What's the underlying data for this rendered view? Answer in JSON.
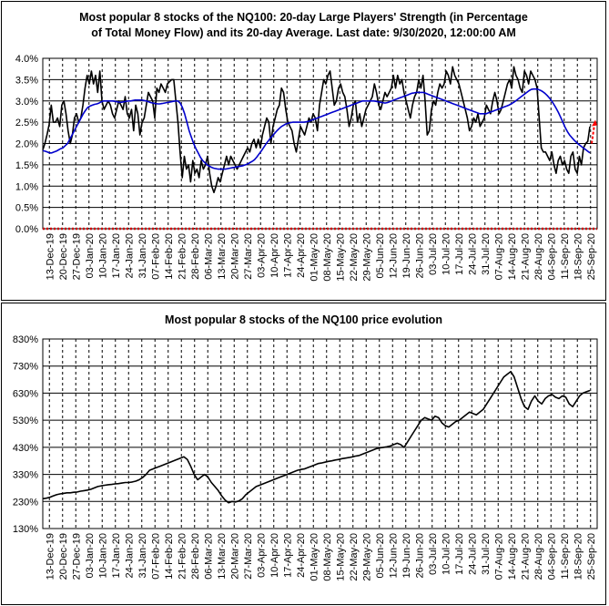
{
  "chart_data": [
    {
      "type": "line",
      "title_line1": "Most popular 8 stocks of the NQ100: 20-day Large Players' Strength (in Percentage",
      "title_line2": "of Total Money Flow) and its 20-day Average. Last date: 9/30/2020, 12:00:00 AM",
      "xlabel": "",
      "ylabel": "",
      "y_ticks": [
        "4.0%",
        "3.5%",
        "3.0%",
        "2.5%",
        "2.0%",
        "1.5%",
        "1.0%",
        "0.5%",
        "0.0%"
      ],
      "ylim": [
        0,
        4
      ],
      "x_tick_labels": [
        "13-Dec-19",
        "20-Dec-19",
        "27-Dec-19",
        "03-Jan-20",
        "10-Jan-20",
        "17-Jan-20",
        "24-Jan-20",
        "31-Jan-20",
        "07-Feb-20",
        "14-Feb-20",
        "21-Feb-20",
        "28-Feb-20",
        "06-Mar-20",
        "13-Mar-20",
        "20-Mar-20",
        "27-Mar-20",
        "03-Apr-20",
        "10-Apr-20",
        "17-Apr-20",
        "24-Apr-20",
        "01-May-20",
        "08-May-20",
        "15-May-20",
        "22-May-20",
        "29-May-20",
        "05-Jun-20",
        "12-Jun-20",
        "19-Jun-20",
        "26-Jun-20",
        "03-Jul-20",
        "10-Jul-20",
        "17-Jul-20",
        "24-Jul-20",
        "31-Jul-20",
        "07-Aug-20",
        "14-Aug-20",
        "21-Aug-20",
        "28-Aug-20",
        "04-Sep-20",
        "11-Sep-20",
        "18-Sep-20",
        "25-Sep-20"
      ],
      "grid": true,
      "legend": "none",
      "series": [
        {
          "color": "#000000",
          "values": [
            1.85,
            2.0,
            2.2,
            2.45,
            2.9,
            2.5,
            2.5,
            2.6,
            2.4,
            2.9,
            3.0,
            2.7,
            2.3,
            2.0,
            2.2,
            2.6,
            2.7,
            2.5,
            2.6,
            2.9,
            3.3,
            3.6,
            3.4,
            3.7,
            3.4,
            3.6,
            3.2,
            3.7,
            3.0,
            2.8,
            2.9,
            3.0,
            2.9,
            2.7,
            2.6,
            2.8,
            3.0,
            2.9,
            2.8,
            3.1,
            2.7,
            2.6,
            2.8,
            2.3,
            2.9,
            2.7,
            2.2,
            2.5,
            2.6,
            2.9,
            3.2,
            3.1,
            3.0,
            2.6,
            3.3,
            3.2,
            3.4,
            3.3,
            3.2,
            3.4,
            3.45,
            3.5,
            3.5,
            3.0,
            2.5,
            1.8,
            1.2,
            1.7,
            1.4,
            1.5,
            1.1,
            1.6,
            1.3,
            1.4,
            1.2,
            1.6,
            1.4,
            1.5,
            1.7,
            1.3,
            1.0,
            0.85,
            1.0,
            1.2,
            1.1,
            1.3,
            1.5,
            1.7,
            1.5,
            1.7,
            1.6,
            1.5,
            1.4,
            1.5,
            1.6,
            1.7,
            1.8,
            1.9,
            1.8,
            2.0,
            2.1,
            1.9,
            2.1,
            1.9,
            2.2,
            2.4,
            2.6,
            2.5,
            2.0,
            2.4,
            2.6,
            2.8,
            2.9,
            3.3,
            3.2,
            2.8,
            2.5,
            2.4,
            2.3,
            2.0,
            1.8,
            2.1,
            2.4,
            2.3,
            2.2,
            2.4,
            2.6,
            2.5,
            2.7,
            2.6,
            2.3,
            2.9,
            3.2,
            3.5,
            3.4,
            3.6,
            3.7,
            3.3,
            2.9,
            3.0,
            3.3,
            3.4,
            3.2,
            3.1,
            2.8,
            2.4,
            2.6,
            2.9,
            3.0,
            2.5,
            2.7,
            2.4,
            2.6,
            2.8,
            2.9,
            3.0,
            3.1,
            3.4,
            3.2,
            2.9,
            2.8,
            3.0,
            3.2,
            3.1,
            3.2,
            3.3,
            3.6,
            3.3,
            3.6,
            3.4,
            3.5,
            3.2,
            3.0,
            2.8,
            2.6,
            2.9,
            3.1,
            3.2,
            3.5,
            3.3,
            3.6,
            3.0,
            2.2,
            2.3,
            2.8,
            3.0,
            2.9,
            3.2,
            3.4,
            3.3,
            3.4,
            3.7,
            3.6,
            3.4,
            3.8,
            3.6,
            3.5,
            3.4,
            3.2,
            3.0,
            2.8,
            2.6,
            2.3,
            2.4,
            2.6,
            2.5,
            2.7,
            2.4,
            2.5,
            2.6,
            2.9,
            2.8,
            2.7,
            3.0,
            3.2,
            3.0,
            2.7,
            2.8,
            3.0,
            3.2,
            3.4,
            3.5,
            3.3,
            3.8,
            3.6,
            3.5,
            3.3,
            3.2,
            3.7,
            3.6,
            3.4,
            3.7,
            3.6,
            3.5,
            3.3,
            2.6,
            1.9,
            1.8,
            1.8,
            1.7,
            1.6,
            1.8,
            1.5,
            1.3,
            1.6,
            1.7,
            1.5,
            1.6,
            1.4,
            1.3,
            1.7,
            1.8,
            1.4,
            1.3,
            1.7,
            1.5,
            1.9,
            2.0,
            2.05,
            2.4
          ]
        },
        {
          "color": "#0000cc",
          "values": [
            1.83,
            1.82,
            1.8,
            1.78,
            1.78,
            1.8,
            1.82,
            1.85,
            1.88,
            1.9,
            1.95,
            2.0,
            2.1,
            2.2,
            2.3,
            2.4,
            2.5,
            2.6,
            2.7,
            2.78,
            2.85,
            2.88,
            2.9,
            2.92,
            2.93,
            2.95,
            2.98,
            3.0,
            3.0,
            3.0,
            3.0,
            3.0,
            2.99,
            2.98,
            2.97,
            2.97,
            2.98,
            2.99,
            3.0,
            3.0,
            3.01,
            3.02,
            3.02,
            3.02,
            3.02,
            3.01,
            3.0,
            2.98,
            2.96,
            2.95,
            2.94,
            2.93,
            2.93,
            2.94,
            2.95,
            2.96,
            2.97,
            2.98,
            2.99,
            3.0,
            3.0,
            2.95,
            2.85,
            2.7,
            2.5,
            2.3,
            2.15,
            2.0,
            1.88,
            1.78,
            1.68,
            1.6,
            1.55,
            1.5,
            1.47,
            1.44,
            1.42,
            1.41,
            1.4,
            1.4,
            1.4,
            1.4,
            1.41,
            1.42,
            1.43,
            1.44,
            1.45,
            1.46,
            1.47,
            1.48,
            1.5,
            1.52,
            1.55,
            1.58,
            1.62,
            1.68,
            1.75,
            1.82,
            1.9,
            1.98,
            2.05,
            2.12,
            2.18,
            2.24,
            2.3,
            2.35,
            2.4,
            2.43,
            2.46,
            2.48,
            2.49,
            2.5,
            2.5,
            2.5,
            2.5,
            2.5,
            2.5,
            2.51,
            2.52,
            2.54,
            2.56,
            2.58,
            2.6,
            2.62,
            2.64,
            2.66,
            2.68,
            2.7,
            2.72,
            2.74,
            2.76,
            2.78,
            2.8,
            2.82,
            2.84,
            2.86,
            2.88,
            2.9,
            2.92,
            2.94,
            2.96,
            2.98,
            3.0,
            3.0,
            3.0,
            3.0,
            3.0,
            3.0,
            2.99,
            2.98,
            2.97,
            2.96,
            2.95,
            2.96,
            2.98,
            3.0,
            3.02,
            3.04,
            3.06,
            3.08,
            3.1,
            3.12,
            3.14,
            3.16,
            3.18,
            3.19,
            3.2,
            3.2,
            3.2,
            3.2,
            3.18,
            3.16,
            3.14,
            3.12,
            3.1,
            3.08,
            3.06,
            3.04,
            3.02,
            3.0,
            2.98,
            2.96,
            2.94,
            2.92,
            2.9,
            2.88,
            2.86,
            2.84,
            2.82,
            2.8,
            2.78,
            2.76,
            2.74,
            2.72,
            2.7,
            2.7,
            2.7,
            2.7,
            2.72,
            2.74,
            2.76,
            2.78,
            2.8,
            2.82,
            2.84,
            2.86,
            2.88,
            2.9,
            2.93,
            2.96,
            3.0,
            3.04,
            3.08,
            3.12,
            3.16,
            3.2,
            3.24,
            3.27,
            3.28,
            3.28,
            3.27,
            3.25,
            3.22,
            3.18,
            3.13,
            3.07,
            3.0,
            2.92,
            2.83,
            2.73,
            2.62,
            2.5,
            2.38,
            2.28,
            2.2,
            2.14,
            2.08,
            2.03,
            1.98,
            1.94,
            1.9,
            1.86,
            1.82,
            1.78
          ],
          "end_marker": {
            "color": "#ff0000",
            "from": 2.0,
            "to": 2.45
          }
        },
        {
          "color": "#cc0000",
          "values": [
            0,
            0
          ]
        }
      ]
    },
    {
      "type": "line",
      "title": "Most popular 8 stocks of the NQ100 price evolution",
      "xlabel": "",
      "ylabel": "",
      "y_ticks": [
        "830%",
        "730%",
        "630%",
        "530%",
        "430%",
        "330%",
        "230%",
        "130%"
      ],
      "ylim": [
        130,
        830
      ],
      "x_tick_labels": [
        "13-Dec-19",
        "20-Dec-19",
        "27-Dec-19",
        "03-Jan-20",
        "10-Jan-20",
        "17-Jan-20",
        "24-Jan-20",
        "31-Jan-20",
        "07-Feb-20",
        "14-Feb-20",
        "21-Feb-20",
        "28-Feb-20",
        "06-Mar-20",
        "13-Mar-20",
        "20-Mar-20",
        "27-Mar-20",
        "03-Apr-20",
        "10-Apr-20",
        "17-Apr-20",
        "24-Apr-20",
        "01-May-20",
        "08-May-20",
        "15-May-20",
        "22-May-20",
        "29-May-20",
        "05-Jun-20",
        "12-Jun-20",
        "19-Jun-20",
        "26-Jun-20",
        "03-Jul-20",
        "10-Jul-20",
        "17-Jul-20",
        "24-Jul-20",
        "31-Jul-20",
        "07-Aug-20",
        "14-Aug-20",
        "21-Aug-20",
        "28-Aug-20",
        "04-Sep-20",
        "11-Sep-20",
        "18-Sep-20",
        "25-Sep-20"
      ],
      "grid": true,
      "legend": "none",
      "series": [
        {
          "color": "#000000",
          "values": [
            240,
            242,
            245,
            250,
            255,
            258,
            260,
            262,
            262,
            264,
            265,
            268,
            270,
            272,
            275,
            280,
            285,
            288,
            290,
            292,
            293,
            295,
            296,
            298,
            300,
            300,
            302,
            305,
            310,
            318,
            330,
            345,
            350,
            355,
            360,
            365,
            370,
            375,
            380,
            385,
            390,
            395,
            385,
            360,
            330,
            310,
            320,
            330,
            320,
            300,
            285,
            270,
            250,
            235,
            225,
            230,
            228,
            232,
            240,
            255,
            265,
            275,
            285,
            290,
            295,
            300,
            305,
            310,
            315,
            320,
            325,
            330,
            335,
            340,
            345,
            348,
            350,
            355,
            360,
            365,
            370,
            372,
            375,
            378,
            380,
            383,
            385,
            388,
            390,
            392,
            395,
            398,
            400,
            405,
            410,
            415,
            420,
            425,
            428,
            430,
            432,
            435,
            440,
            445,
            440,
            430,
            450,
            470,
            490,
            510,
            530,
            540,
            535,
            530,
            545,
            540,
            520,
            510,
            505,
            515,
            525,
            530,
            540,
            550,
            560,
            555,
            550,
            560,
            570,
            590,
            610,
            630,
            650,
            670,
            690,
            700,
            710,
            690,
            650,
            610,
            580,
            570,
            600,
            620,
            600,
            590,
            610,
            620,
            625,
            615,
            610,
            620,
            615,
            590,
            580,
            600,
            620,
            630,
            635,
            640
          ]
        }
      ]
    }
  ]
}
